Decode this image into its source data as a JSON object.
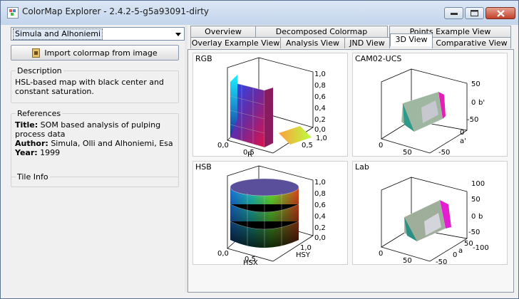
{
  "window": {
    "title": "ColorMap Explorer - 2.4.2-5-g5a93091-dirty"
  },
  "left": {
    "selected_colormap": "Simula and Alhoniemi",
    "import_button": "Import colormap from image",
    "description": {
      "title": "Description",
      "text": "HSL-based map with black center and constant saturation."
    },
    "references": {
      "title": "References",
      "title_label": "Title:",
      "title_value": "SOM based analysis of pulping process data",
      "author_label": "Author:",
      "author_value": "Simula, Olli and Alhoniemi, Esa",
      "year_label": "Year:",
      "year_value": "1999"
    },
    "tile_info": {
      "title": "Tile Info"
    }
  },
  "tabs": {
    "row1": [
      "Overview",
      "Decomposed Colormap",
      "Points Example View"
    ],
    "row2": [
      "Overlay Example View",
      "Analysis View",
      "JND View",
      "3D View",
      "Comparative View"
    ],
    "selected": "3D View"
  },
  "plots": {
    "rgb": {
      "title": "RGB",
      "zticks": [
        "1,0",
        "0,8",
        "0,6",
        "0,4",
        "0,2",
        "0,0"
      ],
      "xticks": [
        "0,0",
        "0,5",
        "1,0"
      ],
      "xlabel": "R",
      "ylabel": "0,5"
    },
    "cam": {
      "title": "CAM02-UCS",
      "zticks": [
        "50",
        "0",
        "-50"
      ],
      "zlabel": "b'",
      "xticks": [
        "0",
        "50"
      ],
      "yticks": [
        "0",
        "-50"
      ],
      "ylabel": "a'"
    },
    "hsb": {
      "title": "HSB",
      "zticks": [
        "1,0",
        "0,8",
        "0,6",
        "0,4",
        "0,2",
        "0,0"
      ],
      "xticks": [
        "0,0",
        "0,5",
        "1,0"
      ],
      "xlabel": "HSX",
      "ylabel": "HSY"
    },
    "lab": {
      "title": "Lab",
      "zticks": [
        "100",
        "50",
        "0",
        "-50",
        "-100"
      ],
      "zlabel": "b",
      "xticks": [
        "0",
        "50"
      ],
      "yticks": [
        "50",
        "0",
        "-50"
      ],
      "ylabel": "a"
    }
  }
}
